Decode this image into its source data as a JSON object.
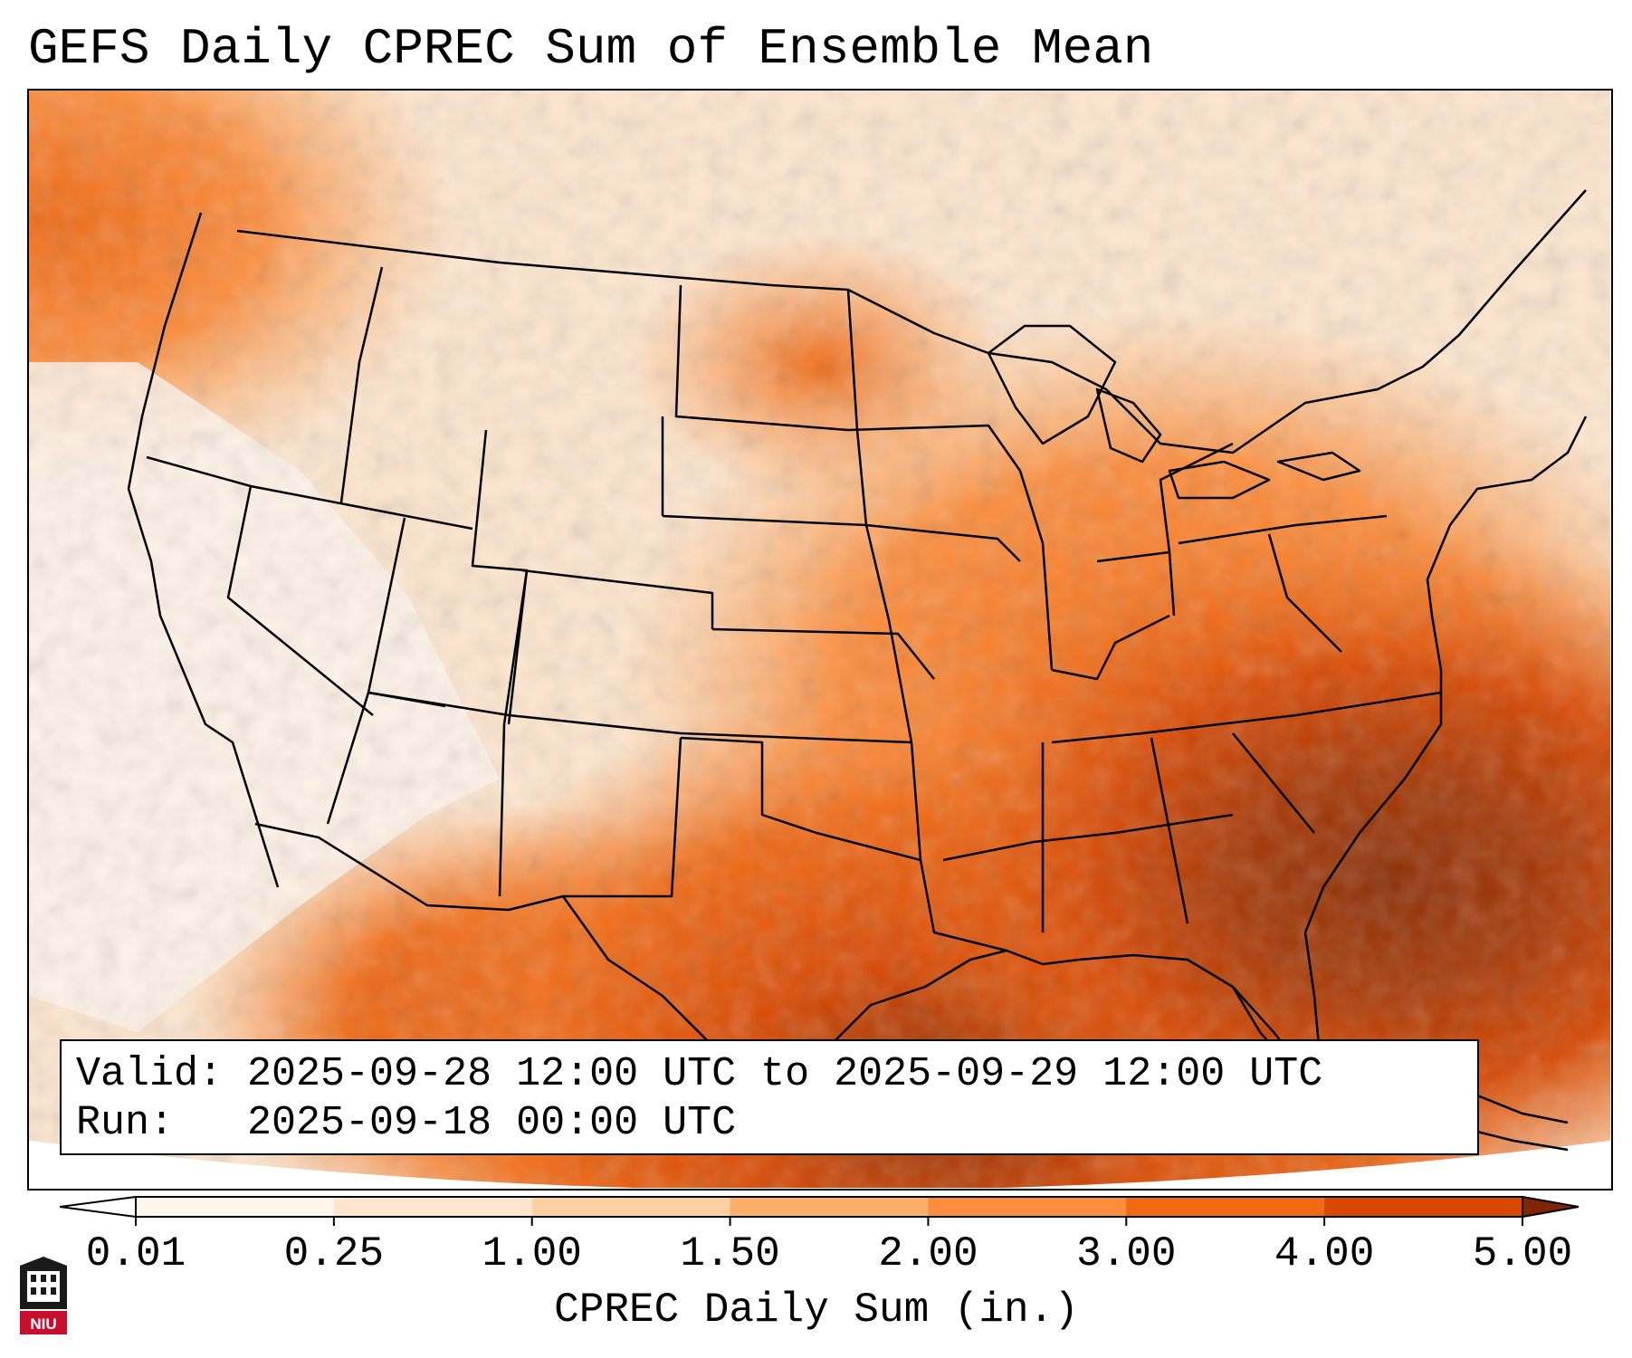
{
  "title": "GEFS Daily CPREC Sum of Ensemble Mean",
  "valid_box": {
    "valid_line": "Valid: 2025-09-28 12:00 UTC to 2025-09-29 12:00 UTC",
    "run_line": "Run:   2025-09-18 00:00 UTC"
  },
  "colorbar": {
    "label": "CPREC Daily Sum (in.)",
    "ticks": [
      "0.01",
      "0.25",
      "1.00",
      "1.50",
      "2.00",
      "3.00",
      "4.00",
      "5.00"
    ],
    "colors": [
      "#fff5eb",
      "#fee6ce",
      "#fdd0a2",
      "#fdae6b",
      "#fd8d3c",
      "#f16913",
      "#d94801",
      "#8c2d04"
    ],
    "under_color": "#ffffff",
    "over_color": "#7f2704"
  },
  "logo_text": "NIU",
  "colors": {
    "state_lines": "#000000",
    "frame": "#000000"
  }
}
